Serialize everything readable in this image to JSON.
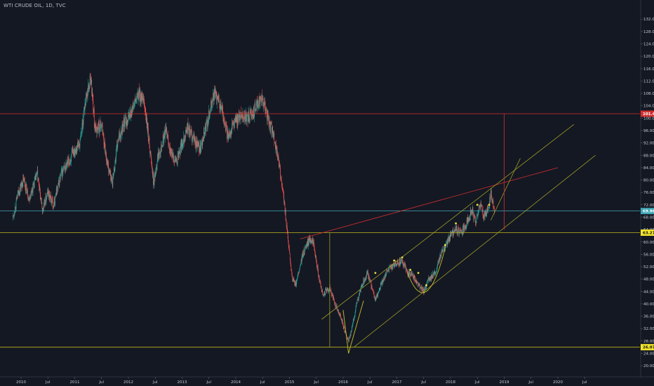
{
  "header": {
    "title": "WTI CRUDE OIL, 1D, TVC"
  },
  "colors": {
    "background": "#141823",
    "up": "#26a69a",
    "down": "#ef5350",
    "red_line": "#d32f2f",
    "trend": "#9e9d24",
    "yellow_line": "#c0b51d",
    "cyan_line": "#3fa7b5",
    "pattern": "#c8c22a",
    "marker_yellow": "#f0e13a"
  },
  "chart_data": {
    "type": "candlestick",
    "title": "WTI CRUDE OIL, 1D, TVC",
    "y_axis": {
      "min": 16,
      "max": 136,
      "side": "right",
      "ticks": [
        "20.00",
        "24.00",
        "28.00",
        "32.00",
        "36.00",
        "40.00",
        "44.00",
        "48.00",
        "52.00",
        "56.00",
        "60.00",
        "64.00",
        "68.00",
        "72.00",
        "76.00",
        "80.00",
        "84.00",
        "88.00",
        "92.00",
        "96.00",
        "100.00",
        "104.00",
        "108.00",
        "112.00",
        "116.00",
        "120.00",
        "124.00",
        "128.00",
        "132.00"
      ]
    },
    "x_axis": {
      "ticks": [
        {
          "label": "2010",
          "t": 2010.0
        },
        {
          "label": "Jul",
          "t": 2010.5
        },
        {
          "label": "2011",
          "t": 2011.0
        },
        {
          "label": "Jul",
          "t": 2011.5
        },
        {
          "label": "2012",
          "t": 2012.0
        },
        {
          "label": "Jul",
          "t": 2012.5
        },
        {
          "label": "2013",
          "t": 2013.0
        },
        {
          "label": "Jul",
          "t": 2013.5
        },
        {
          "label": "2014",
          "t": 2014.0
        },
        {
          "label": "Jul",
          "t": 2014.5
        },
        {
          "label": "2015",
          "t": 2015.0
        },
        {
          "label": "Jul",
          "t": 2015.5
        },
        {
          "label": "2016",
          "t": 2016.0
        },
        {
          "label": "Jul",
          "t": 2016.5
        },
        {
          "label": "2017",
          "t": 2017.0
        },
        {
          "label": "Jul",
          "t": 2017.5
        },
        {
          "label": "2018",
          "t": 2018.0
        },
        {
          "label": "Jul",
          "t": 2018.5
        },
        {
          "label": "2019",
          "t": 2019.0
        },
        {
          "label": "Jul",
          "t": 2019.5
        },
        {
          "label": "2020",
          "t": 2020.0
        },
        {
          "label": "Jul",
          "t": 2020.5
        }
      ]
    },
    "price_path": [
      [
        2009.85,
        68
      ],
      [
        2009.95,
        76
      ],
      [
        2010.05,
        80
      ],
      [
        2010.15,
        74
      ],
      [
        2010.3,
        82
      ],
      [
        2010.4,
        70
      ],
      [
        2010.5,
        76
      ],
      [
        2010.6,
        72
      ],
      [
        2010.75,
        82
      ],
      [
        2010.9,
        86
      ],
      [
        2011.0,
        90
      ],
      [
        2011.1,
        92
      ],
      [
        2011.2,
        106
      ],
      [
        2011.3,
        113
      ],
      [
        2011.38,
        96
      ],
      [
        2011.5,
        98
      ],
      [
        2011.6,
        86
      ],
      [
        2011.7,
        79
      ],
      [
        2011.8,
        92
      ],
      [
        2011.9,
        98
      ],
      [
        2012.0,
        100
      ],
      [
        2012.1,
        104
      ],
      [
        2012.2,
        108
      ],
      [
        2012.3,
        104
      ],
      [
        2012.4,
        90
      ],
      [
        2012.47,
        79
      ],
      [
        2012.55,
        88
      ],
      [
        2012.7,
        96
      ],
      [
        2012.8,
        88
      ],
      [
        2012.9,
        86
      ],
      [
        2013.0,
        92
      ],
      [
        2013.1,
        97
      ],
      [
        2013.25,
        92
      ],
      [
        2013.35,
        90
      ],
      [
        2013.5,
        101
      ],
      [
        2013.6,
        108
      ],
      [
        2013.75,
        102
      ],
      [
        2013.85,
        94
      ],
      [
        2013.95,
        98
      ],
      [
        2014.1,
        101
      ],
      [
        2014.25,
        100
      ],
      [
        2014.4,
        104
      ],
      [
        2014.47,
        107
      ],
      [
        2014.55,
        103
      ],
      [
        2014.65,
        97
      ],
      [
        2014.75,
        91
      ],
      [
        2014.85,
        80
      ],
      [
        2014.92,
        70
      ],
      [
        2015.0,
        56
      ],
      [
        2015.05,
        48
      ],
      [
        2015.12,
        46
      ],
      [
        2015.25,
        56
      ],
      [
        2015.38,
        61
      ],
      [
        2015.45,
        60
      ],
      [
        2015.55,
        48
      ],
      [
        2015.62,
        43
      ],
      [
        2015.75,
        45
      ],
      [
        2015.85,
        40
      ],
      [
        2015.95,
        36
      ],
      [
        2016.0,
        33
      ],
      [
        2016.05,
        30
      ],
      [
        2016.1,
        28
      ],
      [
        2016.15,
        31
      ],
      [
        2016.25,
        40
      ],
      [
        2016.35,
        46
      ],
      [
        2016.45,
        50
      ],
      [
        2016.55,
        44
      ],
      [
        2016.6,
        41
      ],
      [
        2016.7,
        46
      ],
      [
        2016.8,
        50
      ],
      [
        2016.9,
        52
      ],
      [
        2017.0,
        53
      ],
      [
        2017.1,
        54
      ],
      [
        2017.2,
        50
      ],
      [
        2017.3,
        49
      ],
      [
        2017.4,
        46
      ],
      [
        2017.5,
        44
      ],
      [
        2017.6,
        48
      ],
      [
        2017.72,
        50
      ],
      [
        2017.82,
        56
      ],
      [
        2017.9,
        58
      ],
      [
        2018.0,
        62
      ],
      [
        2018.1,
        64
      ],
      [
        2018.2,
        63
      ],
      [
        2018.3,
        66
      ],
      [
        2018.4,
        71
      ],
      [
        2018.47,
        66
      ],
      [
        2018.55,
        73
      ],
      [
        2018.62,
        68
      ],
      [
        2018.7,
        70
      ],
      [
        2018.75,
        76
      ],
      [
        2018.82,
        70
      ]
    ],
    "annotations": {
      "horizontal_lines": [
        {
          "y": 101.44,
          "label": "101.44",
          "color": "red"
        },
        {
          "y": 70.0,
          "label": "69.96",
          "color": "cyan"
        },
        {
          "y": 63.0,
          "label": "63.27",
          "color": "yellow"
        },
        {
          "y": 26.0,
          "label": "26.07",
          "color": "yellow"
        }
      ],
      "trendlines": [
        {
          "from": [
            2015.2,
            61
          ],
          "to": [
            2020.0,
            84
          ],
          "color": "red"
        },
        {
          "from": [
            2015.6,
            35
          ],
          "to": [
            2020.3,
            98
          ],
          "color": "olive"
        },
        {
          "from": [
            2016.2,
            26
          ],
          "to": [
            2020.7,
            88
          ],
          "color": "olive"
        },
        {
          "from": [
            2018.75,
            67
          ],
          "to": [
            2019.3,
            87
          ],
          "color": "olive"
        }
      ],
      "vertical_lines": [
        {
          "x": 2015.75,
          "from": 63,
          "to": 26,
          "color": "olive"
        },
        {
          "x": 2019.0,
          "from": 101.44,
          "to": 64,
          "color": "red"
        }
      ]
    }
  }
}
